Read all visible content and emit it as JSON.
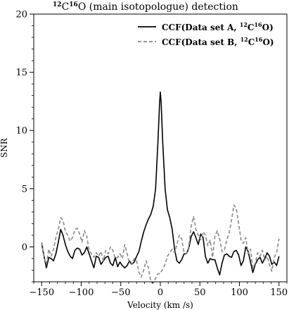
{
  "chart_data": {
    "type": "line",
    "title": {
      "pre": "12",
      "c": "C",
      "mid": "16",
      "rest": "O (main isotopologue) detection"
    },
    "xlabel": "Velocity (km /s)",
    "ylabel": "SNR",
    "xlim": [
      -160,
      160
    ],
    "ylim": [
      -3,
      20
    ],
    "xticks": [
      -150,
      -100,
      -50,
      0,
      50,
      100,
      150
    ],
    "yticks": [
      0,
      5,
      10,
      15,
      20
    ],
    "legend_position": "top-right",
    "series": [
      {
        "name": "CCF(Data set A, 12C16O)",
        "legend": {
          "pre": "CCF(Data set A, ",
          "s1": "12",
          "c": "C",
          "s2": "16",
          "post": "O)"
        },
        "style": "solid",
        "color": "#000000",
        "x": [
          -150,
          -147,
          -144,
          -141,
          -138,
          -135,
          -132,
          -129,
          -126,
          -123,
          -120,
          -117,
          -114,
          -111,
          -108,
          -105,
          -102,
          -99,
          -96,
          -93,
          -90,
          -87,
          -84,
          -81,
          -78,
          -75,
          -72,
          -69,
          -66,
          -63,
          -60,
          -57,
          -54,
          -51,
          -48,
          -45,
          -42,
          -39,
          -36,
          -33,
          -30,
          -27,
          -24,
          -21,
          -18,
          -15,
          -12,
          -9,
          -6,
          -3,
          -1,
          0,
          1,
          3,
          6,
          9,
          12,
          15,
          18,
          21,
          24,
          27,
          30,
          33,
          36,
          39,
          42,
          45,
          48,
          51,
          54,
          57,
          60,
          63,
          66,
          69,
          72,
          75,
          78,
          81,
          84,
          87,
          90,
          93,
          96,
          99,
          102,
          105,
          108,
          111,
          114,
          117,
          120,
          123,
          126,
          129,
          132,
          135,
          138,
          141,
          144,
          147,
          150
        ],
        "values": [
          0.3,
          -0.8,
          -1.8,
          -0.9,
          -1.0,
          -1.2,
          -0.6,
          0.4,
          1.5,
          1.0,
          0.2,
          -0.4,
          -0.8,
          -1.0,
          -0.3,
          -0.1,
          -0.2,
          -0.7,
          -0.5,
          0.0,
          -0.6,
          -1.2,
          -1.8,
          -0.8,
          -0.9,
          -1.5,
          -1.2,
          -0.9,
          -0.8,
          -1.4,
          -1.6,
          -0.9,
          -1.7,
          -1.3,
          -1.6,
          -1.8,
          -1.6,
          -1.2,
          -1.5,
          -1.3,
          -0.8,
          -0.4,
          0.5,
          1.3,
          1.9,
          2.4,
          2.8,
          3.5,
          5.0,
          9.0,
          12.3,
          13.3,
          12.5,
          9.0,
          5.0,
          3.2,
          2.5,
          1.5,
          -0.2,
          -1.2,
          -1.4,
          -1.1,
          -0.6,
          -0.6,
          -0.1,
          0.9,
          1.3,
          0.8,
          0.2,
          1.1,
          0.8,
          -0.8,
          -1.4,
          -1.0,
          -1.1,
          -1.1,
          -1.8,
          -2.4,
          -1.4,
          -0.7,
          -0.6,
          -0.8,
          -0.9,
          -0.4,
          -0.3,
          -0.7,
          -1.6,
          -1.2,
          0.0,
          -0.4,
          -1.3,
          -2.2,
          -1.5,
          -1.1,
          -0.9,
          -1.4,
          -1.0,
          -0.5,
          -0.8,
          -1.5,
          -1.3,
          -1.6,
          -0.8
        ]
      },
      {
        "name": "CCF(Data set B, 12C16O)",
        "legend": {
          "pre": "CCF(Data set B, ",
          "s1": "12",
          "c": "C",
          "s2": "16",
          "post": "O)"
        },
        "style": "dashed",
        "color": "#888888",
        "x": [
          -150,
          -147,
          -144,
          -141,
          -138,
          -135,
          -132,
          -129,
          -126,
          -123,
          -120,
          -117,
          -114,
          -111,
          -108,
          -105,
          -102,
          -99,
          -96,
          -93,
          -90,
          -87,
          -84,
          -81,
          -78,
          -75,
          -72,
          -69,
          -66,
          -63,
          -60,
          -57,
          -54,
          -51,
          -48,
          -45,
          -42,
          -39,
          -36,
          -33,
          -30,
          -27,
          -24,
          -21,
          -18,
          -15,
          -12,
          -9,
          -6,
          -3,
          0,
          3,
          6,
          9,
          12,
          15,
          18,
          21,
          24,
          27,
          30,
          33,
          36,
          39,
          42,
          45,
          48,
          51,
          54,
          57,
          60,
          63,
          66,
          69,
          72,
          75,
          78,
          81,
          84,
          87,
          90,
          93,
          96,
          99,
          102,
          105,
          108,
          111,
          114,
          117,
          120,
          123,
          126,
          129,
          132,
          135,
          138,
          141,
          144,
          147,
          150
        ],
        "values": [
          0.4,
          -0.9,
          -1.5,
          -0.2,
          -0.8,
          -0.2,
          0.8,
          1.5,
          2.5,
          2.3,
          1.3,
          1.0,
          0.5,
          0.8,
          1.5,
          1.6,
          1.1,
          0.4,
          1.4,
          0.9,
          -0.3,
          -0.6,
          -0.9,
          -0.5,
          -0.8,
          -0.4,
          -1.2,
          -0.3,
          -0.6,
          0.0,
          -0.3,
          -1.0,
          -0.9,
          -0.6,
          -1.0,
          0.2,
          -0.6,
          -1.4,
          -1.5,
          -1.0,
          -1.2,
          -2.2,
          -2.6,
          -2.0,
          -1.2,
          -1.8,
          -3.0,
          -3.1,
          -2.7,
          -2.3,
          -2.3,
          -1.9,
          -1.5,
          -0.8,
          -0.5,
          -0.2,
          -0.5,
          0.2,
          1.0,
          0.7,
          -0.5,
          -0.6,
          0.0,
          1.8,
          2.6,
          1.5,
          1.0,
          0.6,
          1.3,
          1.0,
          0.1,
          0.6,
          -0.9,
          0.9,
          1.4,
          0.7,
          -0.4,
          -0.3,
          0.6,
          1.2,
          2.3,
          3.6,
          3.3,
          2.0,
          0.6,
          0.3,
          0.8,
          -0.6,
          -0.2,
          -1.8,
          -1.4,
          -0.5,
          -0.8,
          -0.3,
          -1.1,
          -0.8,
          -1.5,
          -2.1,
          -0.9,
          -0.5,
          0.7
        ]
      }
    ]
  }
}
